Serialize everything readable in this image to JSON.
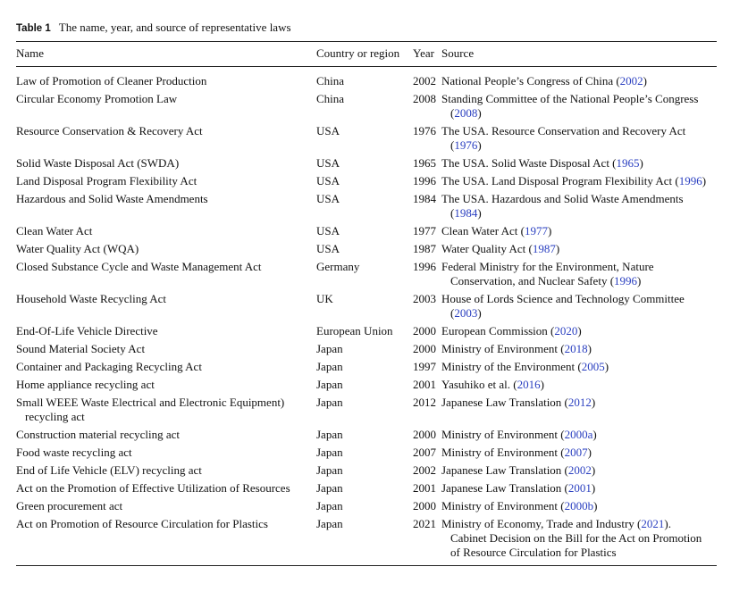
{
  "caption": {
    "label": "Table 1",
    "text": "The name, year, and source of representative laws"
  },
  "headers": {
    "name": "Name",
    "country": "Country or region",
    "year": "Year",
    "source": "Source"
  },
  "citation_color": "#2a3fc0",
  "rows": [
    {
      "name": "Law of Promotion of Cleaner Production",
      "country": "China",
      "year": "2002",
      "source": {
        "text": "National People’s Congress of China (",
        "cite": "2002",
        "after": ")"
      }
    },
    {
      "name": "Circular Economy Promotion Law",
      "country": "China",
      "year": "2008",
      "source": {
        "text": "Standing Committee of the National People’s Congress (",
        "cite": "2008",
        "after": ")"
      }
    },
    {
      "name": "Resource Conservation & Recovery Act",
      "country": "USA",
      "year": "1976",
      "source": {
        "text": "The USA. Resource Conservation and Recovery Act (",
        "cite": "1976",
        "after": ")"
      }
    },
    {
      "name": "Solid Waste Disposal Act (SWDA)",
      "country": "USA",
      "year": "1965",
      "source": {
        "text": "The USA. Solid Waste Disposal Act (",
        "cite": "1965",
        "after": ")"
      }
    },
    {
      "name": "Land Disposal Program Flexibility Act",
      "country": "USA",
      "year": "1996",
      "source": {
        "text": "The USA. Land Disposal Program Flexibility Act (",
        "cite": "1996",
        "after": ")"
      }
    },
    {
      "name": "Hazardous and Solid Waste Amendments",
      "country": "USA",
      "year": "1984",
      "source": {
        "text": "The USA. Hazardous and Solid Waste Amendments (",
        "cite": "1984",
        "after": ")"
      }
    },
    {
      "name": "Clean Water Act",
      "country": "USA",
      "year": "1977",
      "source": {
        "text": "Clean Water Act (",
        "cite": "1977",
        "after": ")"
      }
    },
    {
      "name": "Water Quality Act (WQA)",
      "country": "USA",
      "year": "1987",
      "source": {
        "text": "Water Quality Act (",
        "cite": "1987",
        "after": ")"
      }
    },
    {
      "name": "Closed Substance Cycle and Waste Management Act",
      "country": "Germany",
      "year": "1996",
      "source": {
        "text": "Federal Ministry for the Environment, Nature Conservation, and Nuclear Safety (",
        "cite": "1996",
        "after": ")"
      }
    },
    {
      "name": "Household Waste Recycling Act",
      "country": "UK",
      "year": "2003",
      "source": {
        "text": "House of Lords Science and Technology Committee (",
        "cite": "2003",
        "after": ")"
      }
    },
    {
      "name": "End-Of-Life Vehicle Directive",
      "country": "European Union",
      "year": "2000",
      "source": {
        "text": "European Commission (",
        "cite": "2020",
        "after": ")"
      }
    },
    {
      "name": "Sound Material Society Act",
      "country": "Japan",
      "year": "2000",
      "source": {
        "text": "Ministry of Environment (",
        "cite": "2018",
        "after": ")"
      }
    },
    {
      "name": "Container and Packaging Recycling Act",
      "country": "Japan",
      "year": "1997",
      "source": {
        "text": "Ministry of the Environment (",
        "cite": "2005",
        "after": ")"
      }
    },
    {
      "name": "Home appliance recycling act",
      "country": "Japan",
      "year": "2001",
      "source": {
        "text": "Yasuhiko et al. (",
        "cite": "2016",
        "after": ")"
      }
    },
    {
      "name": "Small WEEE Waste Electrical and Electronic Equipment) recycling act",
      "country": "Japan",
      "year": "2012",
      "source": {
        "text": "Japanese Law Translation (",
        "cite": "2012",
        "after": ")"
      }
    },
    {
      "name": "Construction material recycling act",
      "country": "Japan",
      "year": "2000",
      "source": {
        "text": "Ministry of Environment (",
        "cite": "2000a",
        "after": ")"
      }
    },
    {
      "name": "Food waste recycling act",
      "country": "Japan",
      "year": "2007",
      "source": {
        "text": "Ministry of Environment (",
        "cite": "2007",
        "after": ")"
      }
    },
    {
      "name": "End of Life Vehicle (ELV) recycling act",
      "country": "Japan",
      "year": "2002",
      "source": {
        "text": "Japanese Law Translation (",
        "cite": "2002",
        "after": ")"
      }
    },
    {
      "name": "Act on the Promotion of Effective Utilization of Resources",
      "country": "Japan",
      "year": "2001",
      "source": {
        "text": "Japanese Law Translation (",
        "cite": "2001",
        "after": ")"
      }
    },
    {
      "name": "Green procurement act",
      "country": "Japan",
      "year": "2000",
      "source": {
        "text": "Ministry of Environment (",
        "cite": "2000b",
        "after": ")"
      }
    },
    {
      "name": "Act on Promotion of Resource Circulation for Plastics",
      "country": "Japan",
      "year": "2021",
      "source": {
        "text": "Ministry of Economy, Trade and Industry (",
        "cite": "2021",
        "after": "). Cabinet Decision on the Bill for the Act on Promotion of Resource Circulation for Plastics"
      }
    }
  ]
}
